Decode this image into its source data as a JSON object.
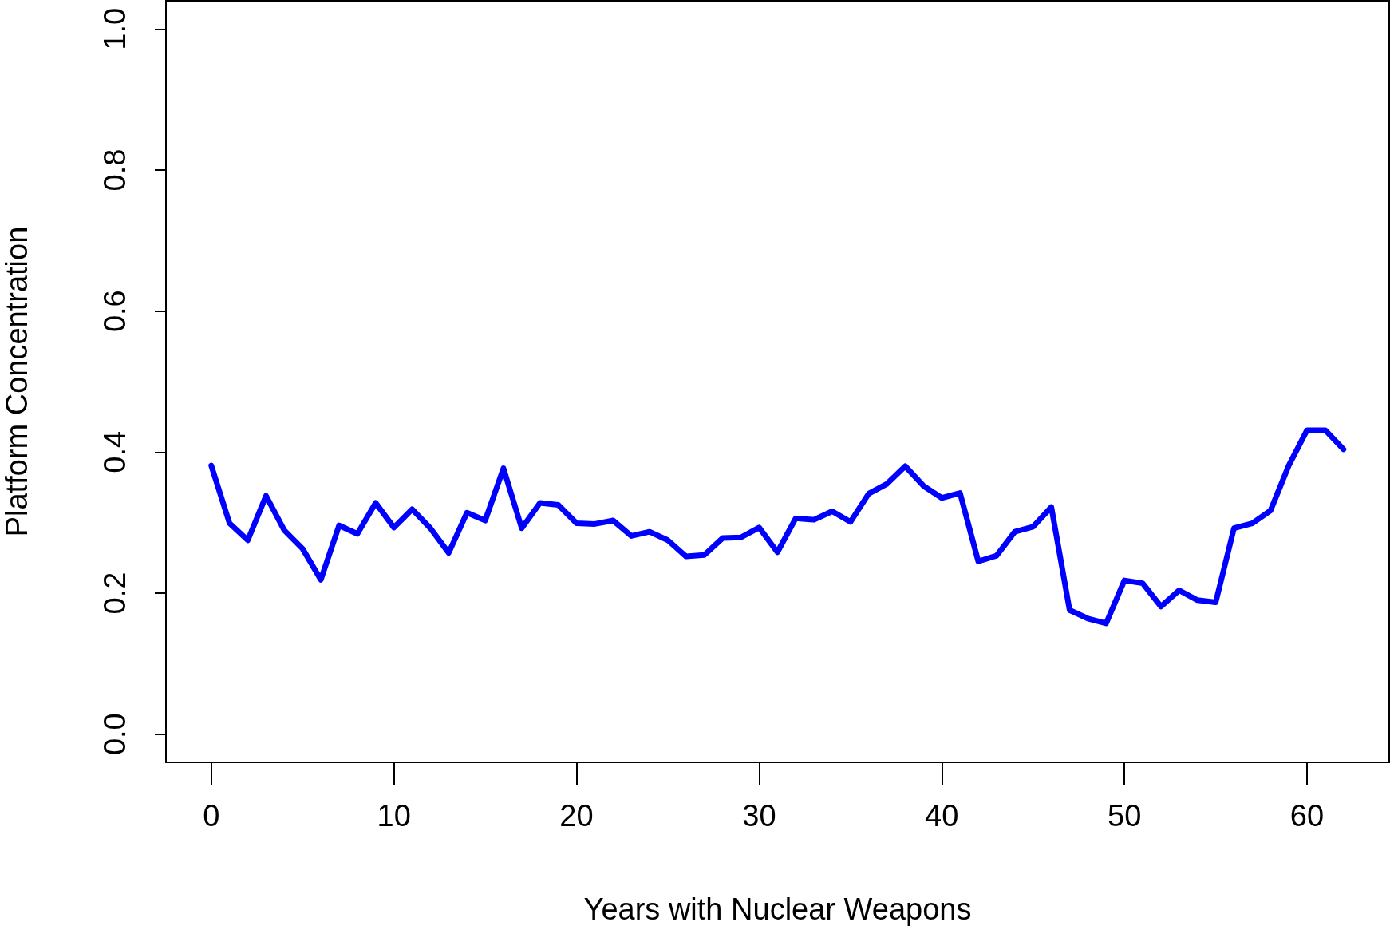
{
  "chart_data": {
    "type": "line",
    "xlabel": "Years with Nuclear Weapons",
    "ylabel": "Platform Concentration",
    "x": [
      0,
      1,
      2,
      3,
      4,
      5,
      6,
      7,
      8,
      9,
      10,
      11,
      12,
      13,
      14,
      15,
      16,
      17,
      18,
      19,
      20,
      21,
      22,
      23,
      24,
      25,
      26,
      27,
      28,
      29,
      30,
      31,
      32,
      33,
      34,
      35,
      36,
      37,
      38,
      39,
      40,
      41,
      42,
      43,
      44,
      45,
      46,
      47,
      48,
      49,
      50,
      51,
      52,
      53,
      54,
      55,
      56,
      57,
      58,
      59,
      60,
      61,
      62
    ],
    "series": [
      {
        "color": "#0000ff",
        "values": [
          0.381,
          0.299,
          0.275,
          0.338,
          0.289,
          0.263,
          0.219,
          0.296,
          0.284,
          0.328,
          0.293,
          0.319,
          0.292,
          0.257,
          0.314,
          0.303,
          0.377,
          0.292,
          0.328,
          0.325,
          0.299,
          0.298,
          0.303,
          0.281,
          0.287,
          0.275,
          0.252,
          0.254,
          0.278,
          0.279,
          0.293,
          0.258,
          0.306,
          0.304,
          0.316,
          0.301,
          0.341,
          0.355,
          0.38,
          0.352,
          0.335,
          0.342,
          0.245,
          0.253,
          0.287,
          0.294,
          0.322,
          0.176,
          0.164,
          0.157,
          0.218,
          0.214,
          0.181,
          0.204,
          0.19,
          0.187,
          0.292,
          0.299,
          0.317,
          0.381,
          0.431,
          0.431,
          0.404
        ]
      }
    ],
    "xlim": [
      -2.48,
      64.5
    ],
    "ylim": [
      -0.04,
      1.04
    ],
    "xticks": [
      0,
      10,
      20,
      30,
      40,
      50,
      60
    ],
    "yticks": [
      {
        "value": 0,
        "label": "0.0"
      },
      {
        "value": 0.2,
        "label": "0.2"
      },
      {
        "value": 0.4,
        "label": "0.4"
      },
      {
        "value": 0.6,
        "label": "0.6"
      },
      {
        "value": 0.8,
        "label": "0.8"
      },
      {
        "value": 1,
        "label": "1.0"
      }
    ],
    "grid": false,
    "marker": "none",
    "line_style": "solid"
  }
}
